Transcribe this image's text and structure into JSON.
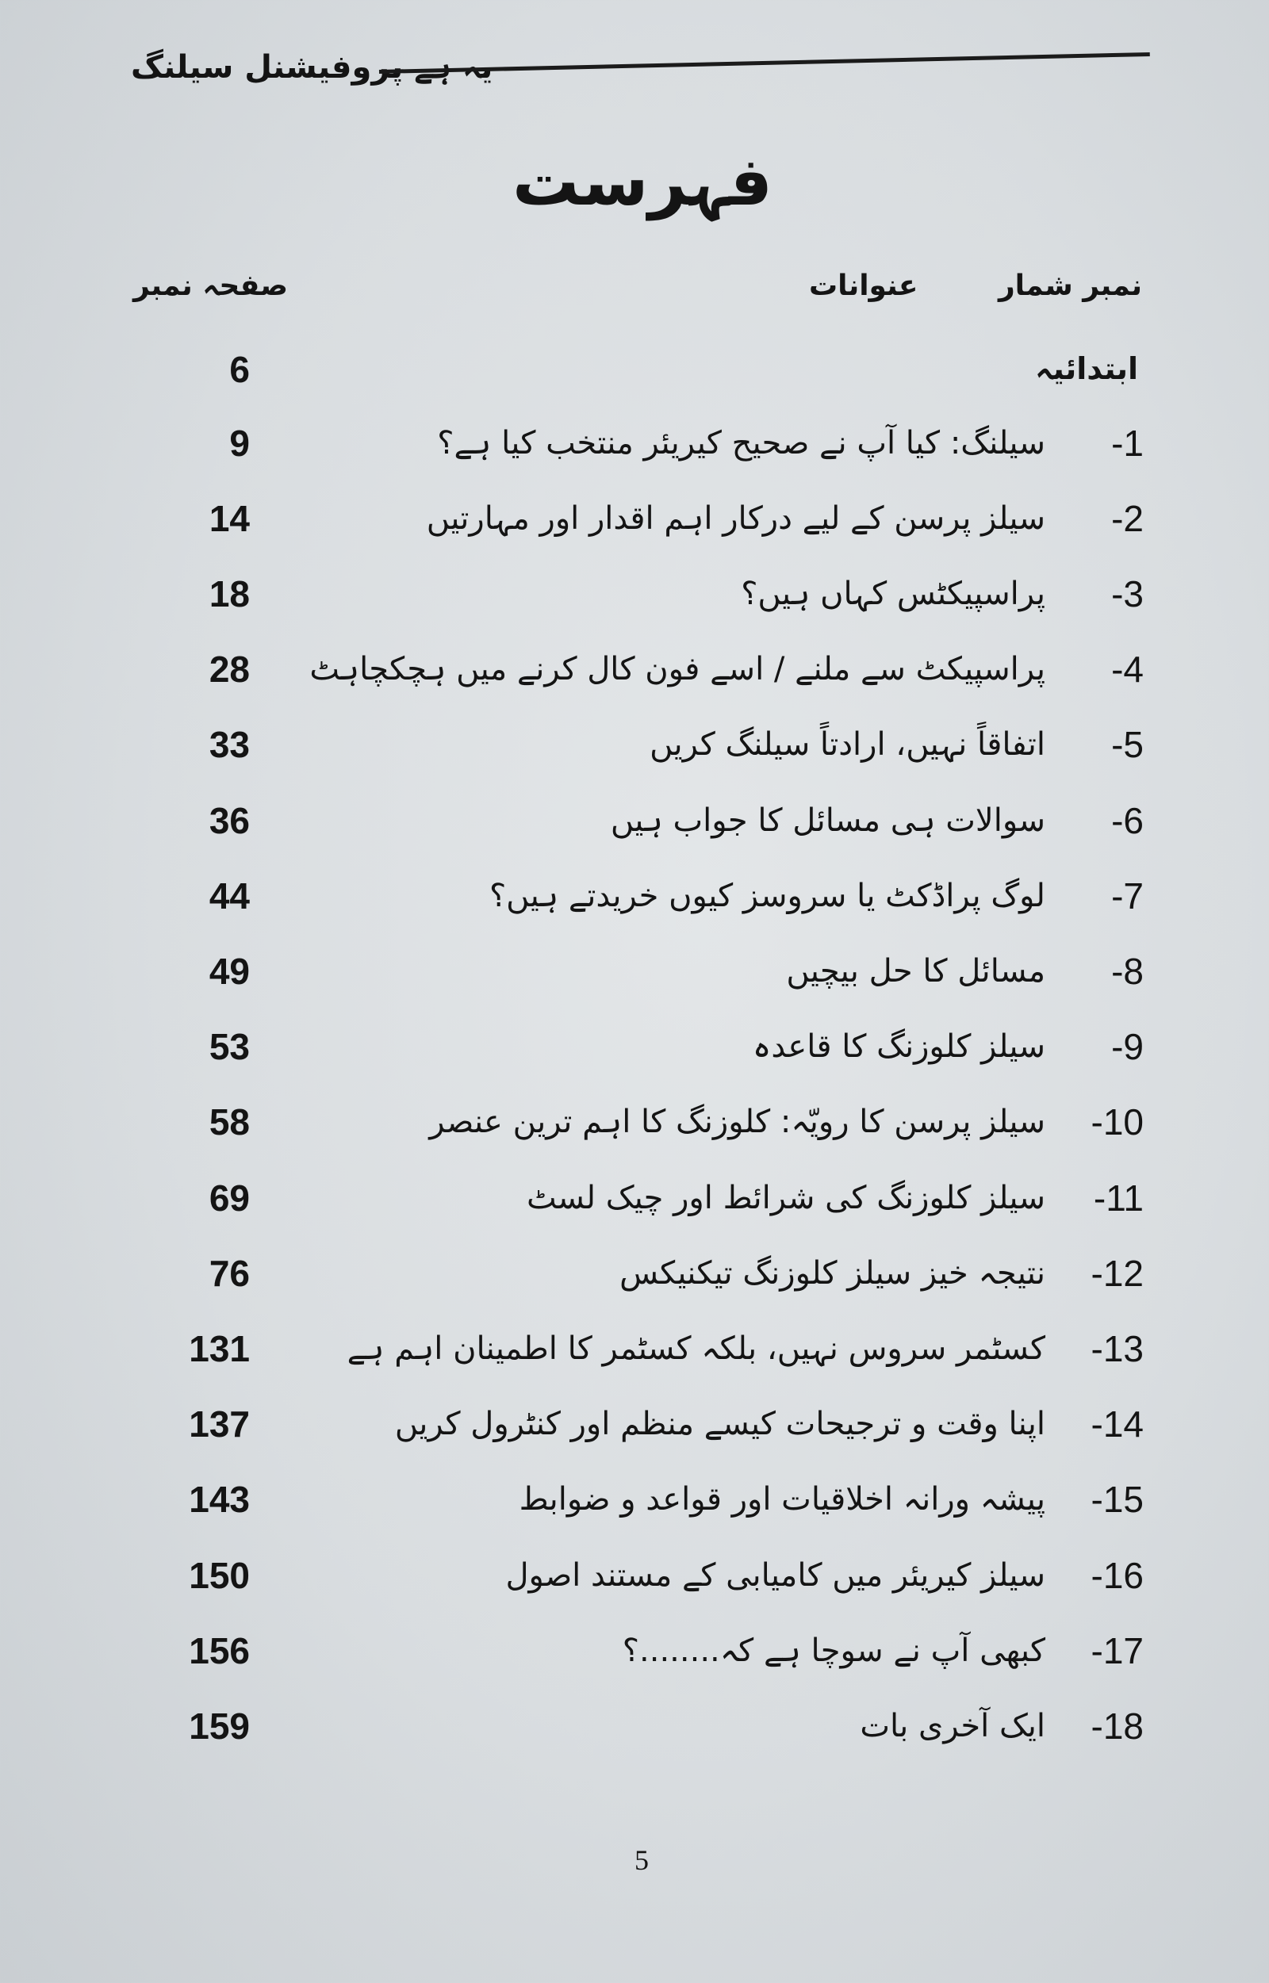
{
  "running_head": "یہ ہے پروفیشنل سیلنگ",
  "title": "فہرست",
  "columns": {
    "number": "نمبر شمار",
    "titles": "عنوانات",
    "page": "صفحہ نمبر"
  },
  "intro": {
    "title": "ابتدائیہ",
    "page": "6"
  },
  "entries": [
    {
      "num": "1-",
      "title": "سیلنگ: کیا آپ نے صحیح کیریئر منتخب کیا ہے؟",
      "page": "9"
    },
    {
      "num": "2-",
      "title": "سیلز پرسن کے لیے درکار اہم اقدار اور مہارتیں",
      "page": "14"
    },
    {
      "num": "3-",
      "title": "پراسپیکٹس کہاں ہیں؟",
      "page": "18"
    },
    {
      "num": "4-",
      "title": "پراسپیکٹ سے ملنے / اسے فون کال کرنے میں ہچکچاہٹ",
      "page": "28"
    },
    {
      "num": "5-",
      "title": "اتفاقاً نہیں، ارادتاً سیلنگ کریں",
      "page": "33"
    },
    {
      "num": "6-",
      "title": "سوالات ہی مسائل کا جواب ہیں",
      "page": "36"
    },
    {
      "num": "7-",
      "title": "لوگ پراڈکٹ یا سروسز کیوں خریدتے ہیں؟",
      "page": "44"
    },
    {
      "num": "8-",
      "title": "مسائل کا حل بیچیں",
      "page": "49"
    },
    {
      "num": "9-",
      "title": "سیلز کلوزنگ کا قاعدہ",
      "page": "53"
    },
    {
      "num": "10-",
      "title": "سیلز پرسن کا رویّہ: کلوزنگ کا اہم ترین عنصر",
      "page": "58"
    },
    {
      "num": "11-",
      "title": "سیلز کلوزنگ کی شرائط اور چیک لسٹ",
      "page": "69"
    },
    {
      "num": "12-",
      "title": "نتیجہ خیز سیلز کلوزنگ تیکنیکس",
      "page": "76"
    },
    {
      "num": "13-",
      "title": "کسٹمر سروس نہیں، بلکہ کسٹمر کا اطمینان اہم ہے",
      "page": "131"
    },
    {
      "num": "14-",
      "title": "اپنا وقت و ترجیحات کیسے منظم اور کنٹرول کریں",
      "page": "137"
    },
    {
      "num": "15-",
      "title": "پیشہ ورانہ اخلاقیات اور قواعد و ضوابط",
      "page": "143"
    },
    {
      "num": "16-",
      "title": "سیلز کیریئر میں کامیابی کے مستند اصول",
      "page": "150"
    },
    {
      "num": "17-",
      "title": "کبھی آپ نے سوچا ہے کہ........؟",
      "page": "156"
    },
    {
      "num": "18-",
      "title": "ایک آخری بات",
      "page": "159"
    }
  ],
  "folio": "5"
}
